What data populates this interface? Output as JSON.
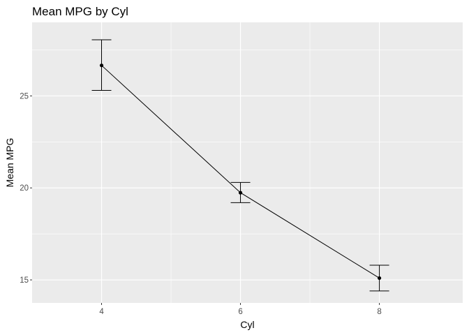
{
  "chart_data": {
    "type": "line",
    "title": "Mean MPG by Cyl",
    "xlabel": "Cyl",
    "ylabel": "Mean MPG",
    "x": [
      4,
      6,
      8
    ],
    "x_tick_labels": [
      "4",
      "6",
      "8"
    ],
    "y_tick_labels": [
      "15",
      "20",
      "25"
    ],
    "y_ticks": [
      15,
      20,
      25
    ],
    "xlim": [
      3,
      9.2
    ],
    "ylim": [
      13.75,
      29.0
    ],
    "series": [
      {
        "values": [
          26.66,
          19.74,
          15.1
        ],
        "error_low": [
          25.3,
          19.2,
          14.4
        ],
        "error_high": [
          28.05,
          20.3,
          15.8
        ]
      }
    ],
    "grid": true,
    "legend": "none",
    "colors": {
      "panel": "#ebebeb",
      "grid_major": "#ffffff",
      "line": "#000000"
    }
  }
}
